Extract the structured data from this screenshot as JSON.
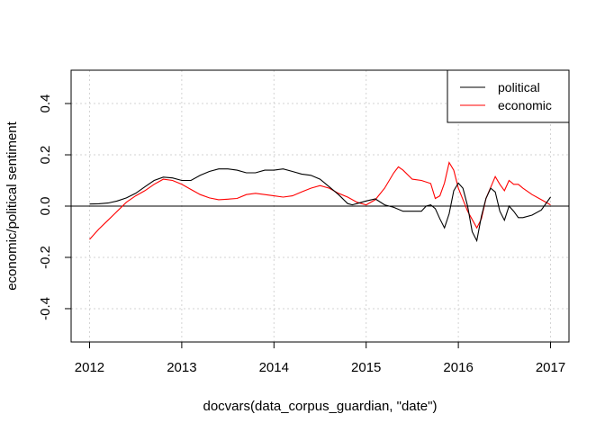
{
  "chart_data": {
    "type": "line",
    "xlabel": "docvars(data_corpus_guardian, \"date\")",
    "ylabel": "economic/political sentiment",
    "xlim": [
      2011.8,
      2017.2
    ],
    "ylim": [
      -0.53,
      0.53
    ],
    "x_ticks": [
      2012,
      2013,
      2014,
      2015,
      2016,
      2017
    ],
    "x_tick_labels": [
      "2012",
      "2013",
      "2014",
      "2015",
      "2016",
      "2017"
    ],
    "y_ticks": [
      -0.4,
      -0.2,
      0.0,
      0.2,
      0.4
    ],
    "y_tick_labels": [
      "-0.4",
      "-0.2",
      "0.0",
      "0.2",
      "0.4"
    ],
    "grid": true,
    "reference_line_y": 0,
    "legend": {
      "position": "top-right",
      "entries": [
        "political",
        "economic"
      ]
    },
    "colors": {
      "political": "#000000",
      "economic": "#ff0000",
      "grid": "#d3d3d3"
    },
    "series": [
      {
        "name": "political",
        "color": "#000000",
        "x": [
          2012.0,
          2012.1,
          2012.2,
          2012.3,
          2012.4,
          2012.5,
          2012.6,
          2012.7,
          2012.8,
          2012.9,
          2013.0,
          2013.1,
          2013.2,
          2013.3,
          2013.4,
          2013.5,
          2013.6,
          2013.7,
          2013.8,
          2013.9,
          2014.0,
          2014.1,
          2014.2,
          2014.3,
          2014.4,
          2014.5,
          2014.6,
          2014.7,
          2014.8,
          2014.85,
          2014.9,
          2015.0,
          2015.1,
          2015.2,
          2015.3,
          2015.4,
          2015.5,
          2015.6,
          2015.65,
          2015.7,
          2015.75,
          2015.8,
          2015.85,
          2015.9,
          2015.95,
          2016.0,
          2016.05,
          2016.1,
          2016.15,
          2016.2,
          2016.25,
          2016.3,
          2016.35,
          2016.4,
          2016.45,
          2016.5,
          2016.55,
          2016.6,
          2016.65,
          2016.7,
          2016.8,
          2016.9,
          2017.0
        ],
        "y": [
          0.008,
          0.009,
          0.012,
          0.02,
          0.032,
          0.05,
          0.075,
          0.1,
          0.113,
          0.11,
          0.1,
          0.1,
          0.12,
          0.135,
          0.145,
          0.145,
          0.14,
          0.13,
          0.13,
          0.14,
          0.14,
          0.145,
          0.135,
          0.125,
          0.12,
          0.105,
          0.075,
          0.045,
          0.01,
          0.005,
          0.01,
          0.02,
          0.028,
          0.005,
          -0.005,
          -0.02,
          -0.02,
          -0.02,
          0.0,
          0.005,
          -0.01,
          -0.05,
          -0.085,
          -0.03,
          0.06,
          0.09,
          0.07,
          0.0,
          -0.1,
          -0.135,
          -0.04,
          0.03,
          0.07,
          0.055,
          -0.02,
          -0.055,
          0.0,
          -0.02,
          -0.045,
          -0.045,
          -0.035,
          -0.015,
          0.035
        ]
      },
      {
        "name": "economic",
        "color": "#ff0000",
        "x": [
          2012.0,
          2012.1,
          2012.2,
          2012.3,
          2012.4,
          2012.5,
          2012.6,
          2012.7,
          2012.8,
          2012.9,
          2013.0,
          2013.1,
          2013.2,
          2013.3,
          2013.4,
          2013.5,
          2013.6,
          2013.7,
          2013.8,
          2013.9,
          2014.0,
          2014.1,
          2014.2,
          2014.3,
          2014.4,
          2014.5,
          2014.6,
          2014.7,
          2014.8,
          2014.9,
          2015.0,
          2015.1,
          2015.2,
          2015.3,
          2015.35,
          2015.4,
          2015.5,
          2015.6,
          2015.7,
          2015.75,
          2015.8,
          2015.85,
          2015.9,
          2015.95,
          2016.0,
          2016.1,
          2016.2,
          2016.25,
          2016.3,
          2016.4,
          2016.45,
          2016.5,
          2016.55,
          2016.6,
          2016.65,
          2016.7,
          2016.8,
          2016.9,
          2017.0
        ],
        "y": [
          -0.13,
          -0.09,
          -0.055,
          -0.02,
          0.015,
          0.04,
          0.06,
          0.085,
          0.105,
          0.1,
          0.085,
          0.065,
          0.045,
          0.032,
          0.025,
          0.027,
          0.03,
          0.045,
          0.05,
          0.045,
          0.04,
          0.035,
          0.04,
          0.055,
          0.07,
          0.08,
          0.07,
          0.05,
          0.035,
          0.015,
          0.005,
          0.025,
          0.07,
          0.13,
          0.153,
          0.14,
          0.105,
          0.1,
          0.088,
          0.03,
          0.04,
          0.09,
          0.17,
          0.14,
          0.07,
          -0.02,
          -0.085,
          -0.05,
          0.03,
          0.115,
          0.085,
          0.06,
          0.1,
          0.085,
          0.085,
          0.07,
          0.045,
          0.025,
          0.005
        ]
      }
    ]
  }
}
